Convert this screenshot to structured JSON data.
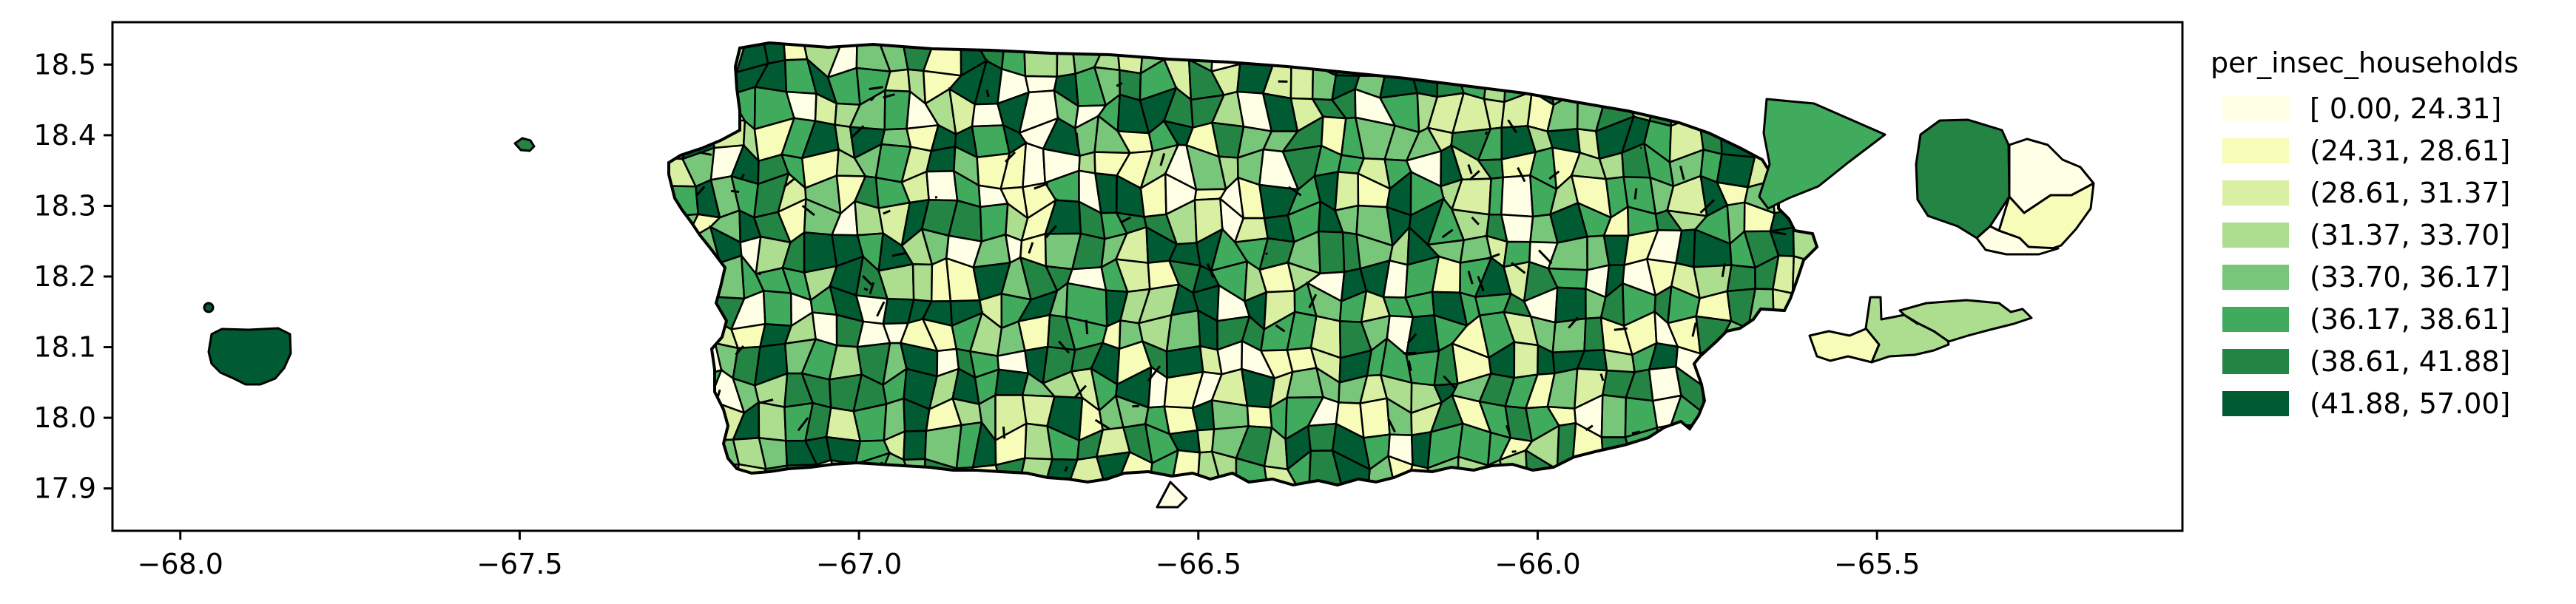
{
  "chart_data": {
    "type": "choropleth",
    "legend": {
      "title": "per_insec_households",
      "placement": "right",
      "bins": [
        {
          "label": "[ 0.00, 24.31]",
          "color": "#ffffe5"
        },
        {
          "label": "(24.31, 28.61]",
          "color": "#f7fcb9"
        },
        {
          "label": "(28.61, 31.37]",
          "color": "#d9f0a3"
        },
        {
          "label": "(31.37, 33.70]",
          "color": "#addd8e"
        },
        {
          "label": "(33.70, 36.17]",
          "color": "#78c679"
        },
        {
          "label": "(36.17, 38.61]",
          "color": "#41ab5d"
        },
        {
          "label": "(38.61, 41.88]",
          "color": "#238443"
        },
        {
          "label": "(41.88, 57.00]",
          "color": "#005a32"
        }
      ]
    },
    "x_axis": {
      "ticks": [
        -68.0,
        -67.5,
        -67.0,
        -66.5,
        -66.0,
        -65.5
      ],
      "tick_labels": [
        "−68.0",
        "−67.5",
        "−67.0",
        "−66.5",
        "−66.0",
        "−65.5"
      ],
      "xlim": [
        -68.1,
        -65.05
      ]
    },
    "y_axis": {
      "ticks": [
        17.9,
        18.0,
        18.1,
        18.2,
        18.3,
        18.4,
        18.5
      ],
      "tick_labels": [
        "17.9",
        "18.0",
        "18.1",
        "18.2",
        "18.3",
        "18.4",
        "18.5"
      ],
      "ylim": [
        17.84,
        18.56
      ]
    },
    "grid": false,
    "regions": [
      {
        "id": "mona",
        "bin": 7
      },
      {
        "id": "monito",
        "bin": 7
      },
      {
        "id": "desecheo",
        "bin": 6
      },
      {
        "id": "caja-de-muerto",
        "bin": 0
      },
      {
        "id": "culebrita-ne",
        "bin": 5
      },
      {
        "id": "culebra-w",
        "bin": 6
      },
      {
        "id": "culebra-ne",
        "bin": 0
      },
      {
        "id": "culebra-se",
        "bin": 1
      },
      {
        "id": "culebra-s",
        "bin": 0
      },
      {
        "id": "vieques-w",
        "bin": 1
      },
      {
        "id": "vieques-mid",
        "bin": 3
      },
      {
        "id": "vieques-e",
        "bin": 3
      },
      {
        "id": "main-island",
        "bin": 5
      }
    ]
  }
}
